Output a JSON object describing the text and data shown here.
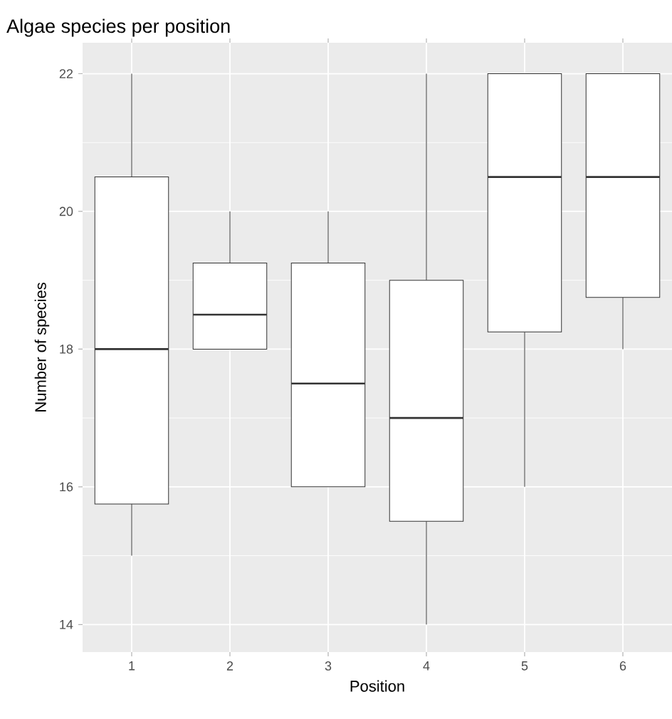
{
  "chart_data": {
    "type": "box",
    "title": "Algae species per position",
    "xlabel": "Position",
    "ylabel": "Number of species",
    "categories": [
      "1",
      "2",
      "3",
      "4",
      "5",
      "6"
    ],
    "boxes": [
      {
        "low": 15,
        "q1": 15.75,
        "median": 18,
        "q3": 20.5,
        "high": 22
      },
      {
        "low": 18,
        "q1": 18,
        "median": 18.5,
        "q3": 19.25,
        "high": 20
      },
      {
        "low": 16,
        "q1": 16,
        "median": 17.5,
        "q3": 19.25,
        "high": 20
      },
      {
        "low": 14,
        "q1": 15.5,
        "median": 17,
        "q3": 19,
        "high": 22
      },
      {
        "low": 16,
        "q1": 18.25,
        "median": 20.5,
        "q3": 22,
        "high": 22
      },
      {
        "low": 18,
        "q1": 18.75,
        "median": 20.5,
        "q3": 22,
        "high": 22
      }
    ],
    "ylim": [
      13.6,
      22.45
    ],
    "yticks": [
      14,
      16,
      18,
      20,
      22
    ],
    "grid": true
  }
}
